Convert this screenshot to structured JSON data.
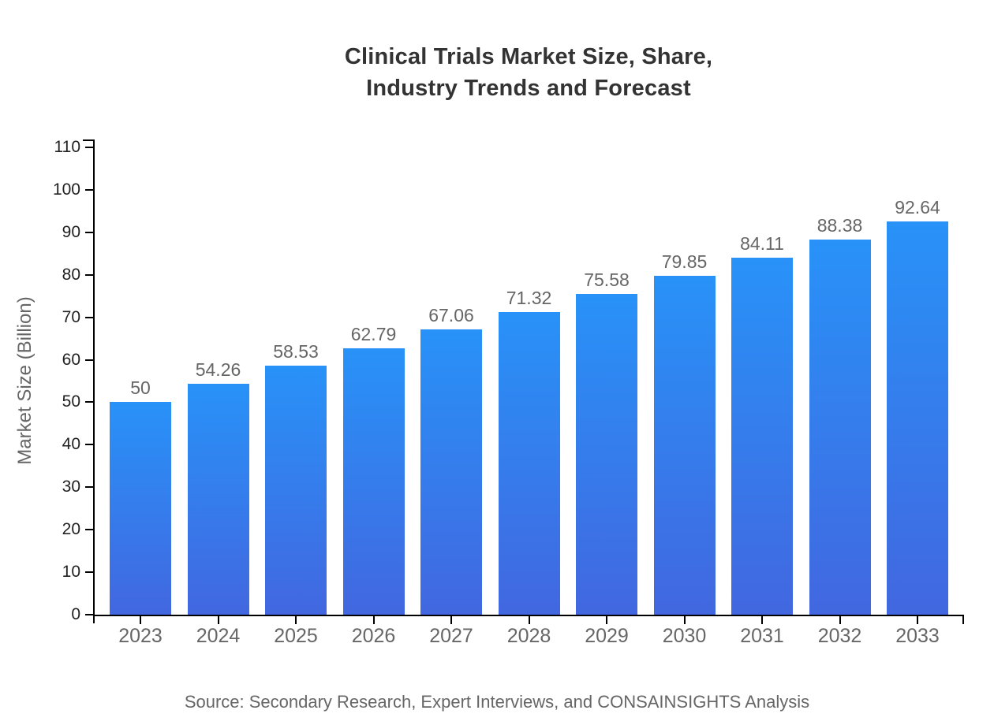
{
  "title": {
    "line1": "Clinical Trials Market Size, Share,",
    "line2": "Industry Trends and Forecast"
  },
  "source": "Source: Secondary Research, Expert Interviews, and CONSAINSIGHTS Analysis",
  "colors": {
    "bar_gradient_top": "#2892F8",
    "bar_gradient_bottom": "#4267E0",
    "axis": "#000000",
    "title_text": "#333333",
    "muted_text": "#666666",
    "y_tick_text": "#222222"
  },
  "chart_data": {
    "type": "bar",
    "title": "Clinical Trials Market Size, Share, Industry Trends and Forecast",
    "categories": [
      "2023",
      "2024",
      "2025",
      "2026",
      "2027",
      "2028",
      "2029",
      "2030",
      "2031",
      "2032",
      "2033"
    ],
    "values": [
      50,
      54.26,
      58.53,
      62.79,
      67.06,
      71.32,
      75.58,
      79.85,
      84.11,
      88.38,
      92.64
    ],
    "value_labels": [
      "50",
      "54.26",
      "58.53",
      "62.79",
      "67.06",
      "71.32",
      "75.58",
      "79.85",
      "84.11",
      "88.38",
      "92.64"
    ],
    "xlabel": "",
    "ylabel": "Market Size (Billion)",
    "ylim": [
      0,
      110
    ],
    "yticks": [
      0,
      10,
      20,
      30,
      40,
      50,
      60,
      70,
      80,
      90,
      100,
      110
    ],
    "grid": false,
    "legend": false
  }
}
